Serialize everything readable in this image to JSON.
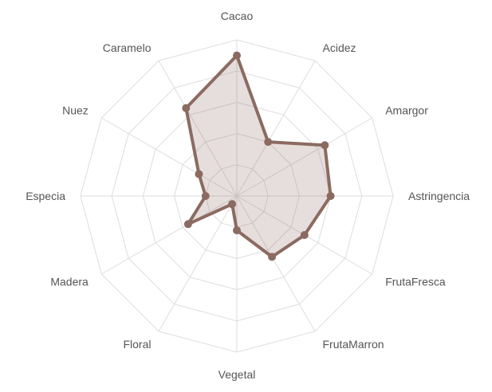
{
  "chart_data": {
    "type": "radar",
    "title": "",
    "axes": [
      "Cacao",
      "Acidez",
      "Amargor",
      "Astringencia",
      "FrutaFresca",
      "FrutaMarron",
      "Vegetal",
      "Floral",
      "Madera",
      "Especia",
      "Nuez",
      "Caramelo"
    ],
    "rmax": 10,
    "ring_count": 5,
    "series": [
      {
        "values": [
          9.0,
          4.0,
          6.5,
          6.0,
          5.0,
          4.5,
          2.2,
          0.6,
          3.6,
          2.0,
          2.8,
          6.5
        ],
        "line_color": "#8b6b61",
        "fill_color": "#8b6b61"
      }
    ],
    "grid": true,
    "grid_color": "#dddddd"
  }
}
